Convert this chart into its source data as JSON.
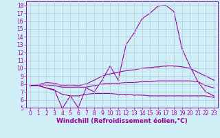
{
  "background_color": "#d0eef5",
  "line_color": "#990099",
  "grid_color": "#b0c8d8",
  "xlabel": "Windchill (Refroidissement éolien,°C)",
  "xlabel_fontsize": 6.5,
  "tick_fontsize": 5.5,
  "xlim": [
    -0.5,
    23.5
  ],
  "ylim": [
    5,
    18.5
  ],
  "yticks": [
    5,
    6,
    7,
    8,
    9,
    10,
    11,
    12,
    13,
    14,
    15,
    16,
    17,
    18
  ],
  "xticks": [
    0,
    1,
    2,
    3,
    4,
    5,
    6,
    7,
    8,
    9,
    10,
    11,
    12,
    13,
    14,
    15,
    16,
    17,
    18,
    19,
    20,
    21,
    22,
    23
  ],
  "line1_x": [
    0,
    1,
    2,
    3,
    4,
    5,
    6,
    7,
    8,
    9,
    10,
    11,
    12,
    13,
    14,
    15,
    16,
    17,
    18,
    19,
    20,
    21,
    22,
    23
  ],
  "line1_y": [
    7.8,
    7.8,
    7.5,
    7.3,
    4.9,
    6.5,
    5.0,
    7.5,
    7.0,
    8.5,
    10.3,
    8.5,
    13.0,
    14.5,
    16.3,
    17.0,
    17.9,
    18.0,
    17.2,
    12.5,
    10.3,
    8.3,
    7.0,
    6.5
  ],
  "line2_x": [
    0,
    1,
    2,
    3,
    4,
    5,
    6,
    7,
    8,
    9,
    10,
    11,
    12,
    13,
    14,
    15,
    16,
    17,
    18,
    19,
    20,
    21,
    22,
    23
  ],
  "line2_y": [
    7.8,
    7.9,
    8.2,
    8.1,
    7.8,
    7.9,
    7.8,
    8.0,
    8.5,
    9.0,
    9.3,
    9.5,
    9.7,
    9.8,
    10.0,
    10.1,
    10.2,
    10.3,
    10.3,
    10.2,
    10.0,
    9.5,
    9.0,
    8.5
  ],
  "line3_x": [
    0,
    1,
    2,
    3,
    4,
    5,
    6,
    7,
    8,
    9,
    10,
    11,
    12,
    13,
    14,
    15,
    16,
    17,
    18,
    19,
    20,
    21,
    22,
    23
  ],
  "line3_y": [
    7.8,
    7.9,
    7.9,
    7.8,
    7.6,
    7.6,
    7.6,
    7.6,
    7.8,
    8.0,
    8.1,
    8.1,
    8.2,
    8.2,
    8.3,
    8.3,
    8.4,
    8.4,
    8.4,
    8.4,
    8.4,
    8.3,
    7.8,
    7.5
  ],
  "line4_x": [
    0,
    1,
    2,
    3,
    4,
    5,
    6,
    7,
    8,
    9,
    10,
    11,
    12,
    13,
    14,
    15,
    16,
    17,
    18,
    19,
    20,
    21,
    22,
    23
  ],
  "line4_y": [
    7.8,
    7.8,
    7.5,
    7.2,
    6.7,
    6.5,
    6.5,
    6.7,
    6.8,
    6.8,
    6.8,
    6.7,
    6.7,
    6.6,
    6.6,
    6.5,
    6.5,
    6.5,
    6.5,
    6.5,
    6.5,
    6.5,
    6.5,
    6.3
  ]
}
